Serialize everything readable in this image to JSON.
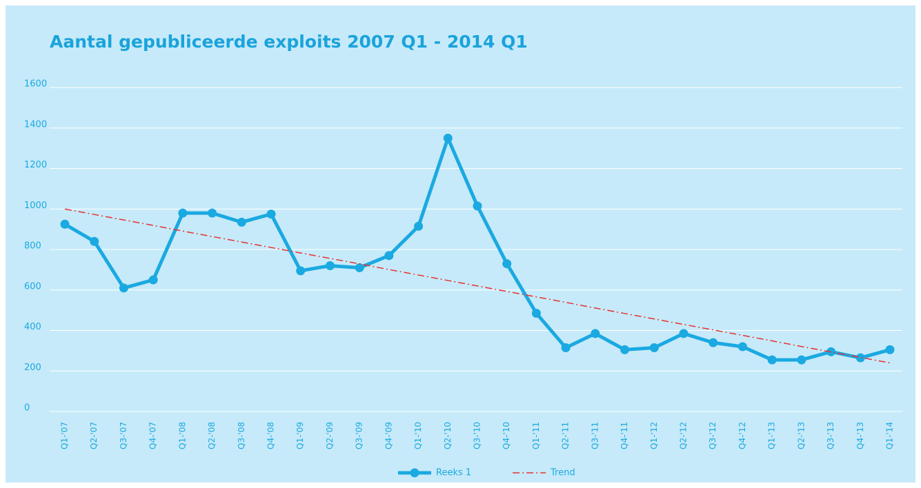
{
  "chart_data": {
    "type": "line",
    "title": "Aantal gepubliceerde exploits 2007 Q1 - 2014 Q1",
    "categories": [
      "Q1-'07",
      "Q2-'07",
      "Q3-'07",
      "Q4-'07",
      "Q1-'08",
      "Q2-'08",
      "Q3-'08",
      "Q4-'08",
      "Q1-'09",
      "Q2-'09",
      "Q3-'09",
      "Q4-'09",
      "Q1-'10",
      "Q2-'10",
      "Q3-'10",
      "Q4-'10",
      "Q1-'11",
      "Q2-'11",
      "Q3-'11",
      "Q4-'11",
      "Q1-'12",
      "Q2-'12",
      "Q3-'12",
      "Q4-'12",
      "Q1-'13",
      "Q2-'13",
      "Q3-'13",
      "Q4-'13",
      "Q1-'14"
    ],
    "series": [
      {
        "name": "Reeks 1",
        "color": "#1ba9e1",
        "style": "solid-markers",
        "values": [
          925,
          840,
          610,
          650,
          980,
          980,
          935,
          975,
          695,
          720,
          710,
          770,
          915,
          1350,
          1015,
          730,
          485,
          315,
          385,
          305,
          315,
          385,
          340,
          320,
          255,
          255,
          295,
          265,
          305
        ]
      },
      {
        "name": "Trend",
        "color": "#e8312f",
        "style": "dash-dot",
        "values": [
          1000,
          973,
          946,
          919,
          891,
          864,
          837,
          810,
          783,
          756,
          729,
          701,
          674,
          647,
          620,
          593,
          566,
          539,
          511,
          484,
          457,
          430,
          403,
          376,
          349,
          321,
          294,
          267,
          240
        ]
      }
    ],
    "ylim": [
      0,
      1600
    ],
    "yticks": [
      0,
      200,
      400,
      600,
      800,
      1000,
      1200,
      1400,
      1600
    ],
    "grid": true,
    "legend": "bottom"
  }
}
